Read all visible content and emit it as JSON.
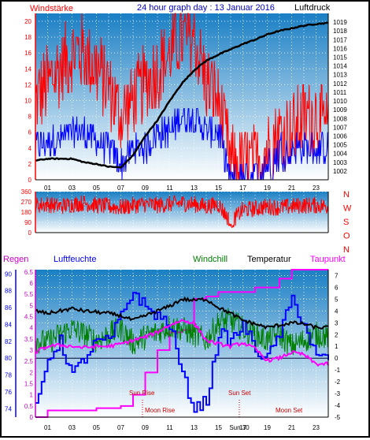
{
  "header": {
    "title": "24 hour graph day : 13 Januar 2016",
    "left_label": "Windstärke",
    "right_label": "Luftdruck"
  },
  "legend": {
    "regen": "Regen",
    "luftfeuchte": "Luftfeuchte",
    "windchill": "Windchill",
    "temperatur": "Temperatur",
    "taupunkt": "Taupunkt"
  },
  "colors": {
    "wind_gust": "#ff0000",
    "wind_avg": "#0000ff",
    "pressure": "#000000",
    "regen": "#ff00ff",
    "luftfeuchte": "#0000ff",
    "windchill": "#008000",
    "temperatur": "#000000",
    "taupunkt": "#ff00ff",
    "plot_bg_top": "#1a7fc4",
    "plot_bg_bottom": "#ffffff"
  },
  "hour_ticks": [
    "01",
    "03",
    "05",
    "07",
    "09",
    "11",
    "13",
    "15",
    "17",
    "19",
    "21",
    "23"
  ],
  "chart_data": [
    {
      "type": "line",
      "title": "24 hour graph day : 13 Januar 2016",
      "ylabel_left": "Windstärke",
      "ylabel_right": "Luftdruck",
      "ylim_left": [
        0,
        21
      ],
      "yticks_left": [
        "0",
        "2",
        "4",
        "6",
        "8",
        "10",
        "12",
        "14",
        "16",
        "18",
        "20"
      ],
      "ylim_right": [
        1001,
        1020
      ],
      "yticks_right": [
        "1002",
        "1003",
        "1004",
        "1005",
        "1006",
        "1007",
        "1008",
        "1009",
        "1010",
        "1011",
        "1012",
        "1013",
        "1014",
        "1015",
        "1016",
        "1017",
        "1018",
        "1019"
      ],
      "x": [
        0,
        1,
        2,
        3,
        4,
        5,
        6,
        7,
        8,
        9,
        10,
        11,
        12,
        13,
        14,
        15,
        16,
        17,
        18,
        19,
        20,
        21,
        22,
        23,
        24
      ],
      "series": [
        {
          "name": "Luftdruck",
          "values": [
            1003.2,
            1003.4,
            1003.4,
            1003.4,
            1003.0,
            1002.8,
            1002.5,
            1002.4,
            1003.8,
            1006.0,
            1007.8,
            1010.0,
            1012.0,
            1013.5,
            1014.6,
            1015.3,
            1015.9,
            1016.5,
            1017.0,
            1017.6,
            1018.0,
            1018.3,
            1018.6,
            1018.8,
            1018.9
          ]
        },
        {
          "name": "Windstärke Böen",
          "values": [
            10,
            12,
            14,
            16,
            16,
            14,
            12,
            8,
            10,
            12,
            14,
            16,
            18,
            18,
            12,
            10,
            2,
            2,
            2,
            4,
            6,
            6,
            8,
            8,
            6
          ]
        },
        {
          "name": "Windstärke Mittel",
          "values": [
            4,
            5,
            5,
            6,
            6,
            5,
            4,
            2,
            4,
            4,
            6,
            6,
            8,
            8,
            6,
            6,
            0,
            1,
            1,
            2,
            4,
            4,
            4,
            4,
            4
          ]
        }
      ]
    },
    {
      "type": "line",
      "yticks_left": [
        "0",
        "90",
        "180",
        "270",
        "360"
      ],
      "ylim_left": [
        0,
        360
      ],
      "yticks_right": [
        "N",
        "W",
        "S",
        "O",
        "N"
      ],
      "series": [
        {
          "name": "Windrichtung",
          "values": [
            240,
            250,
            230,
            250,
            260,
            240,
            230,
            220,
            240,
            250,
            240,
            250,
            260,
            250,
            230,
            250,
            90,
            200,
            210,
            230,
            220,
            230,
            240,
            240,
            230
          ]
        }
      ]
    },
    {
      "type": "line",
      "yticks_regen": [
        "0",
        "0.5",
        "1",
        "1.5",
        "2",
        "2.5",
        "3",
        "3.5",
        "4",
        "4.5",
        "5",
        "5.5",
        "6",
        "6.5"
      ],
      "ylim_regen": [
        0,
        6.6
      ],
      "yticks_feuchte": [
        "74",
        "76",
        "78",
        "80",
        "82",
        "84",
        "86",
        "88",
        "90"
      ],
      "ylim_feuchte": [
        73,
        90.5
      ],
      "yticks_temp": [
        "-5",
        "-4",
        "-3",
        "-2",
        "-1",
        "0",
        "1",
        "2",
        "3",
        "4",
        "5",
        "6",
        "7"
      ],
      "ylim_temp": [
        -5,
        7.5
      ],
      "x": [
        0,
        1,
        2,
        3,
        4,
        5,
        6,
        7,
        8,
        9,
        10,
        11,
        12,
        13,
        14,
        15,
        16,
        17,
        18,
        19,
        20,
        21,
        22,
        23,
        24
      ],
      "series": [
        {
          "name": "Regen",
          "values": [
            0,
            0.3,
            0.3,
            0.3,
            0.3,
            0.4,
            0.4,
            0.5,
            1.0,
            2.0,
            3.0,
            3.8,
            3.9,
            5.3,
            5.4,
            5.6,
            5.6,
            5.6,
            5.8,
            5.8,
            6.2,
            6.6,
            6.6,
            6.6,
            6.6
          ]
        },
        {
          "name": "Luftfeuchte",
          "values": [
            74,
            80,
            82,
            78,
            80,
            82,
            82,
            85,
            88,
            86,
            85,
            84,
            78,
            74,
            75,
            83,
            82,
            84,
            81,
            80,
            83,
            87,
            84,
            80,
            80
          ]
        },
        {
          "name": "Windchill",
          "values": [
            1.5,
            1.3,
            2.0,
            2.5,
            2.0,
            1.5,
            2.0,
            2.5,
            1.3,
            1.8,
            2.2,
            2.7,
            2.5,
            2.0,
            1.5,
            3.0,
            3.2,
            2.5,
            2.0,
            1.5,
            2.0,
            1.0,
            1.5,
            2.0,
            1.8
          ]
        },
        {
          "name": "Temperatur",
          "values": [
            4.0,
            3.8,
            4.0,
            4.2,
            4.0,
            3.9,
            3.8,
            3.6,
            3.2,
            3.6,
            4.0,
            4.4,
            5.0,
            4.9,
            5.0,
            4.3,
            3.8,
            3.2,
            2.9,
            2.6,
            2.8,
            3.0,
            2.9,
            2.6,
            2.6
          ]
        },
        {
          "name": "Taupunkt",
          "values": [
            0.5,
            1.0,
            1.1,
            1.0,
            0.9,
            1.0,
            1.0,
            1.2,
            1.5,
            1.8,
            2.2,
            2.8,
            3.2,
            3.0,
            1.5,
            1.2,
            1.0,
            1.3,
            0.8,
            -0.2,
            0.0,
            0.5,
            0.3,
            -0.5,
            -0.5
          ]
        }
      ],
      "annotations": [
        "Sun Rise",
        "Moon Rise",
        "Sun Set",
        "Moon Set",
        "Sun 30"
      ]
    }
  ]
}
